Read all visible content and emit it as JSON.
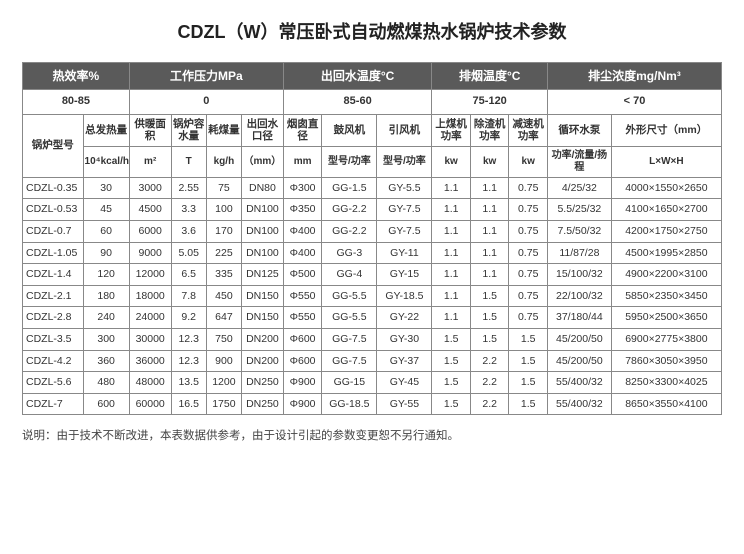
{
  "title": "CDZL（W）常压卧式自动燃煤热水锅炉技术参数",
  "groups": {
    "eff": {
      "label": "热效率%",
      "value": "80-85"
    },
    "press": {
      "label": "工作压力MPa",
      "value": "0"
    },
    "water": {
      "label": "出回水温度°C",
      "value": "85-60"
    },
    "exhaust": {
      "label": "排烟温度°C",
      "value": "75-120"
    },
    "dust": {
      "label": "排尘浓度mg/Nm³",
      "value": "< 70"
    }
  },
  "cols": {
    "model": {
      "label": "锅炉型号",
      "unit": ""
    },
    "heat": {
      "label": "总发热量",
      "unit": "10⁴kcal/h"
    },
    "area": {
      "label": "供暖面积",
      "unit": "m²"
    },
    "cap": {
      "label": "锅炉容水量",
      "unit": "T"
    },
    "coal": {
      "label": "耗煤量",
      "unit": "kg/h"
    },
    "outDia": {
      "label": "出回水口径",
      "unit": "（mm）"
    },
    "chimney": {
      "label": "烟囱直径",
      "unit": "mm"
    },
    "blower": {
      "label": "鼓风机",
      "unit": "型号/功率"
    },
    "induce": {
      "label": "引风机",
      "unit": "型号/功率"
    },
    "coalM": {
      "label": "上煤机功率",
      "unit": "kw"
    },
    "slagM": {
      "label": "除渣机功率",
      "unit": "kw"
    },
    "reducer": {
      "label": "减速机功率",
      "unit": "kw"
    },
    "pump": {
      "label": "循环水泵",
      "unit": "功率/流量/扬程"
    },
    "dims": {
      "label": "外形尺寸（mm）",
      "unit": "L×W×H"
    }
  },
  "rows": [
    {
      "model": "CDZL-0.35",
      "heat": "30",
      "area": "3000",
      "cap": "2.55",
      "coal": "75",
      "outDia": "DN80",
      "chimney": "Φ300",
      "blower": "GG-1.5",
      "induce": "GY-5.5",
      "coalM": "1.1",
      "slagM": "1.1",
      "reducer": "0.75",
      "pump": "4/25/32",
      "dims": "4000×1550×2650"
    },
    {
      "model": "CDZL-0.53",
      "heat": "45",
      "area": "4500",
      "cap": "3.3",
      "coal": "100",
      "outDia": "DN100",
      "chimney": "Φ350",
      "blower": "GG-2.2",
      "induce": "GY-7.5",
      "coalM": "1.1",
      "slagM": "1.1",
      "reducer": "0.75",
      "pump": "5.5/25/32",
      "dims": "4100×1650×2700"
    },
    {
      "model": "CDZL-0.7",
      "heat": "60",
      "area": "6000",
      "cap": "3.6",
      "coal": "170",
      "outDia": "DN100",
      "chimney": "Φ400",
      "blower": "GG-2.2",
      "induce": "GY-7.5",
      "coalM": "1.1",
      "slagM": "1.1",
      "reducer": "0.75",
      "pump": "7.5/50/32",
      "dims": "4200×1750×2750"
    },
    {
      "model": "CDZL-1.05",
      "heat": "90",
      "area": "9000",
      "cap": "5.05",
      "coal": "225",
      "outDia": "DN100",
      "chimney": "Φ400",
      "blower": "GG-3",
      "induce": "GY-11",
      "coalM": "1.1",
      "slagM": "1.1",
      "reducer": "0.75",
      "pump": "11/87/28",
      "dims": "4500×1995×2850"
    },
    {
      "model": "CDZL-1.4",
      "heat": "120",
      "area": "12000",
      "cap": "6.5",
      "coal": "335",
      "outDia": "DN125",
      "chimney": "Φ500",
      "blower": "GG-4",
      "induce": "GY-15",
      "coalM": "1.1",
      "slagM": "1.1",
      "reducer": "0.75",
      "pump": "15/100/32",
      "dims": "4900×2200×3100"
    },
    {
      "model": "CDZL-2.1",
      "heat": "180",
      "area": "18000",
      "cap": "7.8",
      "coal": "450",
      "outDia": "DN150",
      "chimney": "Φ550",
      "blower": "GG-5.5",
      "induce": "GY-18.5",
      "coalM": "1.1",
      "slagM": "1.5",
      "reducer": "0.75",
      "pump": "22/100/32",
      "dims": "5850×2350×3450"
    },
    {
      "model": "CDZL-2.8",
      "heat": "240",
      "area": "24000",
      "cap": "9.2",
      "coal": "647",
      "outDia": "DN150",
      "chimney": "Φ550",
      "blower": "GG-5.5",
      "induce": "GY-22",
      "coalM": "1.1",
      "slagM": "1.5",
      "reducer": "0.75",
      "pump": "37/180/44",
      "dims": "5950×2500×3650"
    },
    {
      "model": "CDZL-3.5",
      "heat": "300",
      "area": "30000",
      "cap": "12.3",
      "coal": "750",
      "outDia": "DN200",
      "chimney": "Φ600",
      "blower": "GG-7.5",
      "induce": "GY-30",
      "coalM": "1.5",
      "slagM": "1.5",
      "reducer": "1.5",
      "pump": "45/200/50",
      "dims": "6900×2775×3800"
    },
    {
      "model": "CDZL-4.2",
      "heat": "360",
      "area": "36000",
      "cap": "12.3",
      "coal": "900",
      "outDia": "DN200",
      "chimney": "Φ600",
      "blower": "GG-7.5",
      "induce": "GY-37",
      "coalM": "1.5",
      "slagM": "2.2",
      "reducer": "1.5",
      "pump": "45/200/50",
      "dims": "7860×3050×3950"
    },
    {
      "model": "CDZL-5.6",
      "heat": "480",
      "area": "48000",
      "cap": "13.5",
      "coal": "1200",
      "outDia": "DN250",
      "chimney": "Φ900",
      "blower": "GG-15",
      "induce": "GY-45",
      "coalM": "1.5",
      "slagM": "2.2",
      "reducer": "1.5",
      "pump": "55/400/32",
      "dims": "8250×3300×4025"
    },
    {
      "model": "CDZL-7",
      "heat": "600",
      "area": "60000",
      "cap": "16.5",
      "coal": "1750",
      "outDia": "DN250",
      "chimney": "Φ900",
      "blower": "GG-18.5",
      "induce": "GY-55",
      "coalM": "1.5",
      "slagM": "2.2",
      "reducer": "1.5",
      "pump": "55/400/32",
      "dims": "8650×3550×4100"
    }
  ],
  "note": "说明：由于技术不断改进，本表数据供参考，由于设计引起的参数变更恕不另行通知。",
  "colWidths": {
    "model": "55",
    "heat": "42",
    "area": "38",
    "cap": "32",
    "coal": "32",
    "outDia": "38",
    "chimney": "35",
    "blower": "50",
    "induce": "50",
    "coalM": "35",
    "slagM": "35",
    "reducer": "35",
    "pump": "58",
    "dims": "100"
  }
}
